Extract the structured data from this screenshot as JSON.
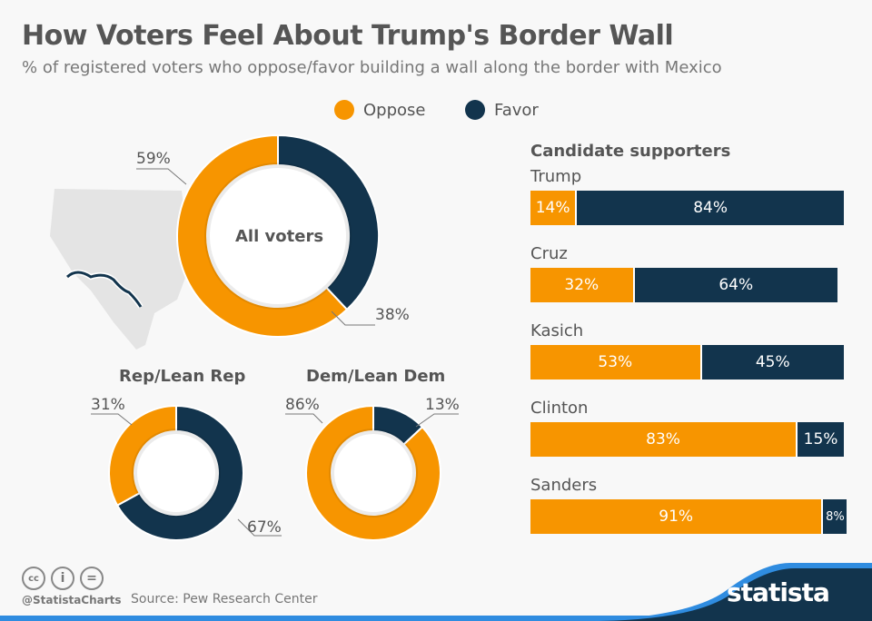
{
  "title": "How Voters Feel About Trump's Border Wall",
  "subtitle": "% of registered voters who oppose/favor building a wall along the border with Mexico",
  "colors": {
    "oppose": "#f79500",
    "favor": "#12344d",
    "text": "#555555"
  },
  "footer": {
    "handle": "@StatistaCharts",
    "source": "Source: Pew Research Center",
    "logo": "statista",
    "license_icons": [
      "cc-icon",
      "by-icon",
      "nd-icon"
    ]
  },
  "chart_data": [
    {
      "type": "pie",
      "subtype": "donut",
      "title": "All voters",
      "legend": [
        "Oppose",
        "Favor"
      ],
      "legend_position": "top",
      "series": [
        {
          "name": "Oppose",
          "value": 59,
          "label": "59%"
        },
        {
          "name": "Favor",
          "value": 38,
          "label": "38%"
        }
      ]
    },
    {
      "type": "pie",
      "subtype": "donut",
      "title": "Rep/Lean Rep",
      "series": [
        {
          "name": "Oppose",
          "value": 31,
          "label": "31%"
        },
        {
          "name": "Favor",
          "value": 67,
          "label": "67%"
        }
      ]
    },
    {
      "type": "pie",
      "subtype": "donut",
      "title": "Dem/Lean Dem",
      "series": [
        {
          "name": "Oppose",
          "value": 86,
          "label": "86%"
        },
        {
          "name": "Favor",
          "value": 13,
          "label": "13%"
        }
      ]
    },
    {
      "type": "bar",
      "orientation": "horizontal",
      "stacked": true,
      "title": "Candidate supporters",
      "categories": [
        "Trump",
        "Cruz",
        "Kasich",
        "Clinton",
        "Sanders"
      ],
      "series": [
        {
          "name": "Oppose",
          "values": [
            14,
            32,
            53,
            83,
            91
          ],
          "labels": [
            "14%",
            "32%",
            "53%",
            "83%",
            "91%"
          ]
        },
        {
          "name": "Favor",
          "values": [
            84,
            64,
            45,
            15,
            8
          ],
          "labels": [
            "84%",
            "64%",
            "45%",
            "15%",
            "8%"
          ]
        }
      ]
    }
  ]
}
